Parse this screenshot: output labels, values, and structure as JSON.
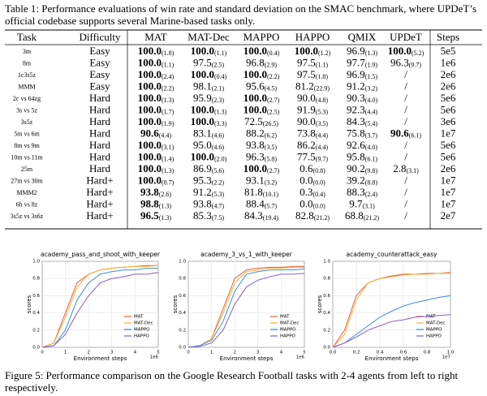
{
  "table_caption": "Table 1: Performance evaluations of win rate and standard deviation on the SMAC benchmark, where UPDeT’s official codebase supports several Marine-based tasks only.",
  "table": {
    "header": [
      "Task",
      "Difficulty",
      "MAT",
      "MAT-Dec",
      "MAPPO",
      "HAPPO",
      "QMIX",
      "UPDeT",
      "Steps"
    ],
    "rows": [
      {
        "task": "3m",
        "difficulty": "Easy",
        "cells": [
          {
            "v": "100.0",
            "s": "(1.8)",
            "bold": true
          },
          {
            "v": "100.0",
            "s": "(1.1)",
            "bold": true
          },
          {
            "v": "100.0",
            "s": "(0.4)",
            "bold": true
          },
          {
            "v": "100.0",
            "s": "(1.2)",
            "bold": true
          },
          {
            "v": "96.9",
            "s": "(1.3)"
          },
          {
            "v": "100.0",
            "s": "(5.2)",
            "bold": true
          }
        ],
        "steps": "5e5"
      },
      {
        "task": "8m",
        "difficulty": "Easy",
        "cells": [
          {
            "v": "100.0",
            "s": "(1.1)",
            "bold": true
          },
          {
            "v": "97.5",
            "s": "(2.5)"
          },
          {
            "v": "96.8",
            "s": "(2.9)"
          },
          {
            "v": "97.5",
            "s": "(1.1)"
          },
          {
            "v": "97.7",
            "s": "(1.9)"
          },
          {
            "v": "96.3",
            "s": "(9.7)"
          }
        ],
        "steps": "1e6"
      },
      {
        "task": "1c3s5z",
        "difficulty": "Easy",
        "cells": [
          {
            "v": "100.0",
            "s": "(2.4)",
            "bold": true
          },
          {
            "v": "100.0",
            "s": "(0.4)",
            "bold": true
          },
          {
            "v": "100.0",
            "s": "(2.2)",
            "bold": true
          },
          {
            "v": "97.5",
            "s": "(1.8)"
          },
          {
            "v": "96.9",
            "s": "(1.5)"
          },
          {
            "v": "/"
          }
        ],
        "steps": "2e6"
      },
      {
        "task": "MMM",
        "difficulty": "Easy",
        "cells": [
          {
            "v": "100.0",
            "s": "(2.2)",
            "bold": true
          },
          {
            "v": "98.1",
            "s": "(2.1)"
          },
          {
            "v": "95.6",
            "s": "(4.5)"
          },
          {
            "v": "81.2",
            "s": "(22.9)"
          },
          {
            "v": "91.2",
            "s": "(3.2)"
          },
          {
            "v": "/"
          }
        ],
        "steps": "2e6"
      },
      {
        "task": "2c vs 64zg",
        "difficulty": "Hard",
        "cells": [
          {
            "v": "100.0",
            "s": "(1.3)",
            "bold": true
          },
          {
            "v": "95.9",
            "s": "(2.3)"
          },
          {
            "v": "100.0",
            "s": "(2.7)",
            "bold": true
          },
          {
            "v": "90.0",
            "s": "(4.8)"
          },
          {
            "v": "90.3",
            "s": "(4.0)"
          },
          {
            "v": "/"
          }
        ],
        "steps": "5e6"
      },
      {
        "task": "3s vs 5z",
        "difficulty": "Hard",
        "cells": [
          {
            "v": "100.0",
            "s": "(1.7)",
            "bold": true
          },
          {
            "v": "100.0",
            "s": "(1.3)",
            "bold": true
          },
          {
            "v": "100.0",
            "s": "(2.5)",
            "bold": true
          },
          {
            "v": "91.9",
            "s": "(5.3)"
          },
          {
            "v": "92.3",
            "s": "(4.4)"
          },
          {
            "v": "/"
          }
        ],
        "steps": "5e6"
      },
      {
        "task": "3s5z",
        "difficulty": "Hard",
        "cells": [
          {
            "v": "100.0",
            "s": "(1.9)",
            "bold": true
          },
          {
            "v": "100.0",
            "s": "(3.3)",
            "bold": true
          },
          {
            "v": "72.5",
            "s": "(26.5)"
          },
          {
            "v": "90.0",
            "s": "(3.5)"
          },
          {
            "v": "84.3",
            "s": "(5.4)"
          },
          {
            "v": "/"
          }
        ],
        "steps": "3e6"
      },
      {
        "task": "5m vs 6m",
        "difficulty": "Hard",
        "cells": [
          {
            "v": "90.6",
            "s": "(4.4)",
            "bold": true
          },
          {
            "v": "83.1",
            "s": "(4.6)"
          },
          {
            "v": "88.2",
            "s": "(6.2)"
          },
          {
            "v": "73.8",
            "s": "(4.4)"
          },
          {
            "v": "75.8",
            "s": "(3.7)"
          },
          {
            "v": "90.6",
            "s": "(6.1)",
            "bold": true
          }
        ],
        "steps": "1e7"
      },
      {
        "task": "8m vs 9m",
        "difficulty": "Hard",
        "cells": [
          {
            "v": "100.0",
            "s": "(3.1)",
            "bold": true
          },
          {
            "v": "95.0",
            "s": "(4.6)"
          },
          {
            "v": "93.8",
            "s": "(3.5)"
          },
          {
            "v": "86.2",
            "s": "(4.4)"
          },
          {
            "v": "92.6",
            "s": "(4.0)"
          },
          {
            "v": "/"
          }
        ],
        "steps": "5e6"
      },
      {
        "task": "10m vs 11m",
        "difficulty": "Hard",
        "cells": [
          {
            "v": "100.0",
            "s": "(1.4)",
            "bold": true
          },
          {
            "v": "100.0",
            "s": "(2.0)",
            "bold": true
          },
          {
            "v": "96.3",
            "s": "(5.8)"
          },
          {
            "v": "77.5",
            "s": "(9.7)"
          },
          {
            "v": "95.8",
            "s": "(6.1)"
          },
          {
            "v": "/"
          }
        ],
        "steps": "5e6"
      },
      {
        "task": "25m",
        "difficulty": "Hard",
        "cells": [
          {
            "v": "100.0",
            "s": "(1.3)",
            "bold": true
          },
          {
            "v": "86.9",
            "s": "(5.6)"
          },
          {
            "v": "100.0",
            "s": "(2.7)",
            "bold": true
          },
          {
            "v": "0.6",
            "s": "(0.8)"
          },
          {
            "v": "90.2",
            "s": "(9.8)"
          },
          {
            "v": "2.8",
            "s": "(3.1)"
          }
        ],
        "steps": "2e6"
      },
      {
        "task": "27m vs 30m",
        "difficulty": "Hard+",
        "cells": [
          {
            "v": "100.0",
            "s": "(0.7)",
            "bold": true
          },
          {
            "v": "95.3",
            "s": "(2.2)"
          },
          {
            "v": "93.1",
            "s": "(3.2)"
          },
          {
            "v": "0.0",
            "s": "(0.0)"
          },
          {
            "v": "39.2",
            "s": "(8.8)"
          },
          {
            "v": "/"
          }
        ],
        "steps": "1e7"
      },
      {
        "task": "MMM2",
        "difficulty": "Hard+",
        "cells": [
          {
            "v": "93.8",
            "s": "(2.6)",
            "bold": true
          },
          {
            "v": "91.2",
            "s": "(5.3)"
          },
          {
            "v": "81.8",
            "s": "(10.1)"
          },
          {
            "v": "0.3",
            "s": "(0.4)"
          },
          {
            "v": "88.3",
            "s": "(2.4)"
          },
          {
            "v": "/"
          }
        ],
        "steps": "1e7"
      },
      {
        "task": "6h vs 8z",
        "difficulty": "Hard+",
        "cells": [
          {
            "v": "98.8",
            "s": "(1.3)",
            "bold": true
          },
          {
            "v": "93.8",
            "s": "(4.7)"
          },
          {
            "v": "88.4",
            "s": "(5.7)"
          },
          {
            "v": "0.0",
            "s": "(0.0)"
          },
          {
            "v": "9.7",
            "s": "(3.1)"
          },
          {
            "v": "/"
          }
        ],
        "steps": "1e7"
      },
      {
        "task": "3s5z vs 3s6z",
        "difficulty": "Hard+",
        "cells": [
          {
            "v": "96.5",
            "s": "(1.3)",
            "bold": true
          },
          {
            "v": "85.3",
            "s": "(7.5)"
          },
          {
            "v": "84.3",
            "s": "(19.4)"
          },
          {
            "v": "82.8",
            "s": "(21.2)"
          },
          {
            "v": "68.8",
            "s": "(21.2)"
          },
          {
            "v": "/"
          }
        ],
        "steps": "2e7"
      }
    ]
  },
  "figures": [
    {
      "type": "line",
      "title": "academy_pass_and_shoot_with_keeper",
      "x_label": "Environment steps",
      "y_label": "scores",
      "x_offset": "1e6",
      "x": [
        0,
        0.5,
        1,
        1.5,
        2,
        2.5,
        3,
        3.5,
        4,
        4.5,
        5
      ],
      "xlim": [
        0,
        5
      ],
      "xticks": [
        0,
        1,
        2,
        3,
        4,
        5
      ],
      "ylim": [
        0,
        1
      ],
      "yticks": [
        {
          "value": 0,
          "label": "0.0"
        },
        {
          "value": 0.2,
          "label": "0.2"
        },
        {
          "value": 0.4,
          "label": "0.4"
        },
        {
          "value": 0.6,
          "label": "0.6"
        },
        {
          "value": 0.8,
          "label": "0.8"
        },
        {
          "value": 1,
          "label": "1.0"
        }
      ],
      "grid": true,
      "series": [
        {
          "name": "MAT",
          "color": "#e8603c",
          "values": [
            0,
            0.05,
            0.4,
            0.75,
            0.85,
            0.9,
            0.92,
            0.93,
            0.94,
            0.95,
            0.95
          ]
        },
        {
          "name": "MAT-Dec",
          "color": "#f2b134",
          "values": [
            0,
            0.05,
            0.35,
            0.7,
            0.85,
            0.9,
            0.92,
            0.93,
            0.94,
            0.94,
            0.95
          ]
        },
        {
          "name": "MAPPO",
          "color": "#3b8fd9",
          "values": [
            0,
            0.02,
            0.2,
            0.55,
            0.75,
            0.85,
            0.88,
            0.9,
            0.9,
            0.92,
            0.92
          ]
        },
        {
          "name": "HAPPO",
          "color": "#8a5cc7",
          "values": [
            0,
            0.02,
            0.15,
            0.4,
            0.6,
            0.75,
            0.8,
            0.82,
            0.85,
            0.85,
            0.87
          ]
        }
      ]
    },
    {
      "type": "line",
      "title": "academy_3_vs_1_with_keeper",
      "x_label": "Environment steps",
      "y_label": "scores",
      "x_offset": "1e6",
      "x": [
        0,
        0.5,
        1,
        1.5,
        2,
        2.5,
        3,
        3.5,
        4,
        4.5,
        5
      ],
      "xlim": [
        0,
        5
      ],
      "xticks": [
        0,
        1,
        2,
        3,
        4,
        5
      ],
      "ylim": [
        0,
        1
      ],
      "yticks": [
        {
          "value": 0,
          "label": "0.0"
        },
        {
          "value": 0.2,
          "label": "0.2"
        },
        {
          "value": 0.4,
          "label": "0.4"
        },
        {
          "value": 0.6,
          "label": "0.6"
        },
        {
          "value": 0.8,
          "label": "0.8"
        },
        {
          "value": 1,
          "label": "1.0"
        }
      ],
      "grid": true,
      "series": [
        {
          "name": "MAT",
          "color": "#e8603c",
          "values": [
            0,
            0.02,
            0.1,
            0.45,
            0.8,
            0.9,
            0.92,
            0.93,
            0.93,
            0.94,
            0.94
          ]
        },
        {
          "name": "MAT-Dec",
          "color": "#f2b134",
          "values": [
            0,
            0.02,
            0.1,
            0.4,
            0.75,
            0.88,
            0.9,
            0.92,
            0.92,
            0.93,
            0.93
          ]
        },
        {
          "name": "MAPPO",
          "color": "#3b8fd9",
          "values": [
            0,
            0.02,
            0.08,
            0.3,
            0.65,
            0.85,
            0.88,
            0.9,
            0.9,
            0.9,
            0.91
          ]
        },
        {
          "name": "HAPPO",
          "color": "#8a5cc7",
          "values": [
            0,
            0.01,
            0.05,
            0.2,
            0.5,
            0.7,
            0.78,
            0.82,
            0.85,
            0.85,
            0.86
          ]
        }
      ]
    },
    {
      "type": "line",
      "title": "academy_counterattack_easy",
      "x_label": "Environment steps",
      "y_label": "scores",
      "x_offset": "1e7",
      "x": [
        0,
        0.1,
        0.2,
        0.3,
        0.4,
        0.5,
        0.6,
        0.7,
        0.8,
        0.9,
        1
      ],
      "xlim": [
        0,
        1
      ],
      "xticks": [
        {
          "value": 0,
          "label": "0.0"
        },
        {
          "value": 0.2,
          "label": "0.2"
        },
        {
          "value": 0.4,
          "label": "0.4"
        },
        {
          "value": 0.6,
          "label": "0.6"
        },
        {
          "value": 0.8,
          "label": "0.8"
        },
        {
          "value": 1,
          "label": "1.0"
        }
      ],
      "ylim": [
        0,
        1
      ],
      "yticks": [
        {
          "value": 0,
          "label": "0.0"
        },
        {
          "value": 0.2,
          "label": "0.2"
        },
        {
          "value": 0.4,
          "label": "0.4"
        },
        {
          "value": 0.6,
          "label": "0.6"
        },
        {
          "value": 0.8,
          "label": "0.8"
        },
        {
          "value": 1,
          "label": "1.0"
        }
      ],
      "grid": true,
      "series": [
        {
          "name": "MAT",
          "color": "#e8603c",
          "values": [
            0,
            0.2,
            0.6,
            0.75,
            0.8,
            0.83,
            0.85,
            0.85,
            0.86,
            0.86,
            0.87
          ]
        },
        {
          "name": "MAT-Dec",
          "color": "#f2b134",
          "values": [
            0,
            0.15,
            0.55,
            0.75,
            0.8,
            0.82,
            0.84,
            0.85,
            0.85,
            0.86,
            0.86
          ]
        },
        {
          "name": "MAPPO",
          "color": "#3b8fd9",
          "values": [
            0,
            0.05,
            0.15,
            0.25,
            0.35,
            0.42,
            0.48,
            0.52,
            0.55,
            0.58,
            0.6
          ]
        },
        {
          "name": "HAPPO",
          "color": "#8a5cc7",
          "values": [
            0,
            0.05,
            0.12,
            0.2,
            0.25,
            0.3,
            0.32,
            0.35,
            0.36,
            0.37,
            0.38
          ]
        }
      ]
    }
  ],
  "figure_caption": "Figure 5: Performance comparison on the Google Research Football tasks with 2-4 agents from left to right respectively."
}
